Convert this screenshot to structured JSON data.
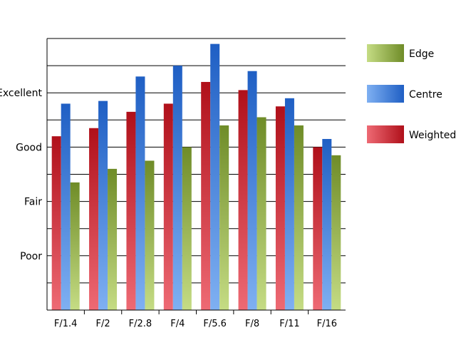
{
  "chart_data": {
    "type": "bar",
    "title": "",
    "xlabel": "",
    "ylabel": "",
    "categories": [
      "F/1.4",
      "F/2",
      "F/2.8",
      "F/4",
      "F/5.6",
      "F/8",
      "F/11",
      "F/16"
    ],
    "y_scale_labels": [
      "Poor",
      "Fair",
      "Good",
      "Excellent"
    ],
    "y_scale_values": [
      2,
      4,
      6,
      8
    ],
    "ylim": [
      0,
      10
    ],
    "grid": true,
    "legend_position": "right",
    "series": [
      {
        "name": "Weighted",
        "values": [
          6.4,
          6.7,
          7.3,
          7.6,
          8.4,
          8.1,
          7.5,
          6.0
        ],
        "color": "#c0141e"
      },
      {
        "name": "Centre",
        "values": [
          7.6,
          7.7,
          8.6,
          9.0,
          9.8,
          8.8,
          7.8,
          6.3
        ],
        "color": "#2e6fcf"
      },
      {
        "name": "Edge",
        "values": [
          4.7,
          5.2,
          5.5,
          6.0,
          6.8,
          7.1,
          6.8,
          5.7
        ],
        "color": "#7a9a2e"
      }
    ],
    "legend_order": [
      "Edge",
      "Centre",
      "Weighted"
    ]
  }
}
